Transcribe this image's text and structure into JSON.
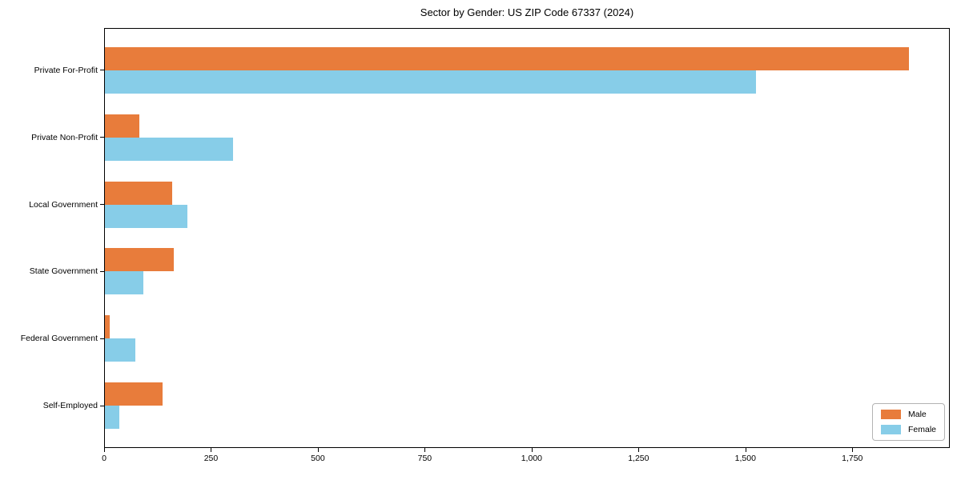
{
  "chart_data": {
    "type": "bar",
    "orientation": "horizontal",
    "title": "Sector by Gender: US ZIP Code 67337 (2024)",
    "categories": [
      "Private For-Profit",
      "Private Non-Profit",
      "Local Government",
      "State Government",
      "Federal Government",
      "Self-Employed"
    ],
    "series": [
      {
        "name": "Male",
        "color": "#e87c3b",
        "values": [
          1884,
          80,
          158,
          162,
          11,
          135
        ]
      },
      {
        "name": "Female",
        "color": "#87cde8",
        "values": [
          1525,
          300,
          193,
          91,
          71,
          33
        ]
      }
    ],
    "xlim": [
      0,
      1978
    ],
    "xticks": [
      0,
      250,
      500,
      750,
      1000,
      1250,
      1500,
      1750
    ],
    "xtick_labels": [
      "0",
      "250",
      "500",
      "750",
      "1,000",
      "1,250",
      "1,500",
      "1,750"
    ],
    "grid": false,
    "legend": {
      "position": "lower-right"
    }
  }
}
